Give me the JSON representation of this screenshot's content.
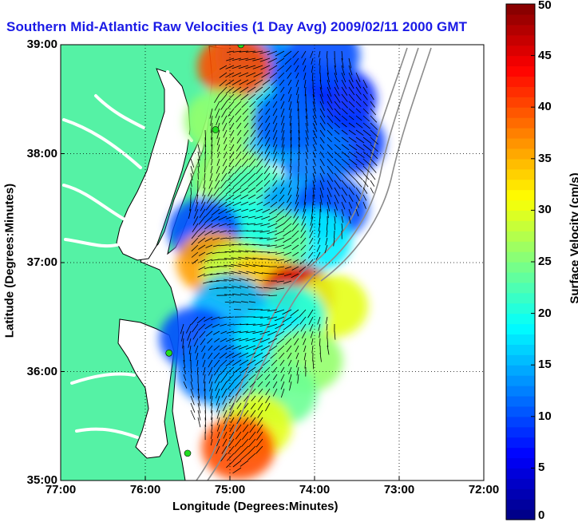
{
  "title": "Southern Mid-Atlantic Raw Velocities (1 Day Avg) 2009/02/11 2000 GMT",
  "map": {
    "x_axis_label": "Longitude (Degrees:Minutes)",
    "y_axis_label": "Latitude (Degrees:Minutes)",
    "lon_range": [
      -77,
      -72
    ],
    "lat_range": [
      35,
      39
    ],
    "x_ticks": [
      {
        "value": -77,
        "label": "77:00"
      },
      {
        "value": -76,
        "label": "76:00"
      },
      {
        "value": -75,
        "label": "75:00"
      },
      {
        "value": -74,
        "label": "74:00"
      },
      {
        "value": -73,
        "label": "73:00"
      },
      {
        "value": -72,
        "label": "72:00"
      }
    ],
    "y_ticks": [
      {
        "value": 39,
        "label": "39:00"
      },
      {
        "value": 38,
        "label": "38:00"
      },
      {
        "value": 37,
        "label": "37:00"
      },
      {
        "value": 36,
        "label": "36:00"
      },
      {
        "value": 35,
        "label": "35:00"
      }
    ],
    "grid": "dotted",
    "land_color": "#55f2a5",
    "coastline_color": "#000000",
    "bathymetry_color": "#8c8c8c",
    "vector_color": "#000000",
    "radar_site_color": "#22dd22",
    "radar_sites": [
      {
        "lon": -74.87,
        "lat": 39.0
      },
      {
        "lon": -75.17,
        "lat": 38.22
      },
      {
        "lon": -75.72,
        "lat": 36.17
      },
      {
        "lon": -75.5,
        "lat": 35.25
      }
    ]
  },
  "colorbar": {
    "label": "Surface Velocity (cm/s)",
    "min": 0,
    "max": 50,
    "colormap": "jet",
    "ticks": [
      {
        "value": 50,
        "label": "50"
      },
      {
        "value": 45,
        "label": "45"
      },
      {
        "value": 40,
        "label": "40"
      },
      {
        "value": 35,
        "label": "35"
      },
      {
        "value": 30,
        "label": "30"
      },
      {
        "value": 25,
        "label": "25"
      },
      {
        "value": 20,
        "label": "20"
      },
      {
        "value": 15,
        "label": "15"
      },
      {
        "value": 10,
        "label": "10"
      },
      {
        "value": 5,
        "label": "5"
      },
      {
        "value": 0,
        "label": "0"
      }
    ]
  }
}
